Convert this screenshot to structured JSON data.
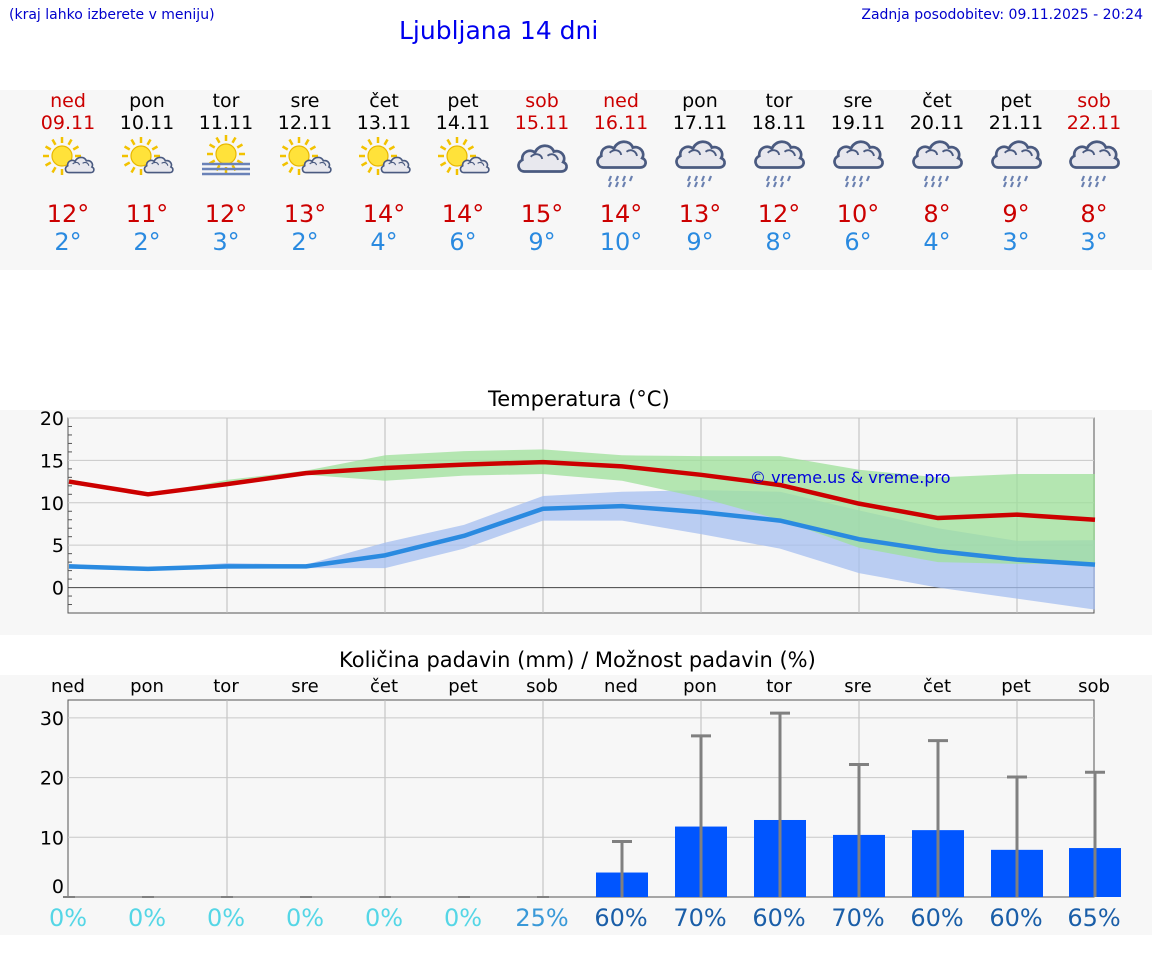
{
  "header": {
    "location_hint": "(kraj lahko izberete v meniju)",
    "title": "Ljubljana 14 dni",
    "last_update": "Zadnja posodobitev: 09.11.2025 - 20:24"
  },
  "days": [
    {
      "name": "ned",
      "date": "09.11",
      "weekend": true,
      "icon": "sun-cloud-icon",
      "tmax": "12°",
      "tmin": "2°"
    },
    {
      "name": "pon",
      "date": "10.11",
      "weekend": false,
      "icon": "sun-cloud-icon",
      "tmax": "11°",
      "tmin": "2°"
    },
    {
      "name": "tor",
      "date": "11.11",
      "weekend": false,
      "icon": "sun-fog-icon",
      "tmax": "12°",
      "tmin": "3°"
    },
    {
      "name": "sre",
      "date": "12.11",
      "weekend": false,
      "icon": "sun-cloud-icon",
      "tmax": "13°",
      "tmin": "2°"
    },
    {
      "name": "čet",
      "date": "13.11",
      "weekend": false,
      "icon": "sun-cloud-icon",
      "tmax": "14°",
      "tmin": "4°"
    },
    {
      "name": "pet",
      "date": "14.11",
      "weekend": false,
      "icon": "sun-cloud-icon",
      "tmax": "14°",
      "tmin": "6°"
    },
    {
      "name": "sob",
      "date": "15.11",
      "weekend": true,
      "icon": "cloud-icon",
      "tmax": "15°",
      "tmin": "9°"
    },
    {
      "name": "ned",
      "date": "16.11",
      "weekend": true,
      "icon": "rain-cloud-icon",
      "tmax": "14°",
      "tmin": "10°"
    },
    {
      "name": "pon",
      "date": "17.11",
      "weekend": false,
      "icon": "rain-cloud-icon",
      "tmax": "13°",
      "tmin": "9°"
    },
    {
      "name": "tor",
      "date": "18.11",
      "weekend": false,
      "icon": "rain-cloud-icon",
      "tmax": "12°",
      "tmin": "8°"
    },
    {
      "name": "sre",
      "date": "19.11",
      "weekend": false,
      "icon": "rain-cloud-icon",
      "tmax": "10°",
      "tmin": "6°"
    },
    {
      "name": "čet",
      "date": "20.11",
      "weekend": false,
      "icon": "rain-cloud-icon",
      "tmax": "8°",
      "tmin": "4°"
    },
    {
      "name": "pet",
      "date": "21.11",
      "weekend": false,
      "icon": "rain-cloud-icon",
      "tmax": "9°",
      "tmin": "3°"
    },
    {
      "name": "sob",
      "date": "22.11",
      "weekend": true,
      "icon": "rain-cloud-icon",
      "tmax": "8°",
      "tmin": "3°"
    }
  ],
  "colors": {
    "weekend": "#cc0000",
    "weekday": "#000000",
    "tmax": "#cc0000",
    "tmin": "#2a8ae0",
    "tmax_band": "#9de09a",
    "tmin_band": "#a6bff0",
    "overlap_band": "#5fb59a",
    "bar": "#0055ff",
    "whisker": "#808080",
    "pct_low": "#55d6e6",
    "pct_mid": "#3a99d8",
    "pct_high": "#1a5ea8"
  },
  "chart_data": [
    {
      "type": "line",
      "title": "Temperatura (°C)",
      "watermark": "© vreme.us & vreme.pro",
      "x": [
        "09.11",
        "10.11",
        "11.11",
        "12.11",
        "13.11",
        "14.11",
        "15.11",
        "16.11",
        "17.11",
        "18.11",
        "19.11",
        "20.11",
        "21.11",
        "22.11"
      ],
      "ylim": [
        -3,
        20
      ],
      "yticks": [
        0,
        5,
        10,
        15,
        20
      ],
      "grid": true,
      "series": [
        {
          "name": "",
          "values": [
            12.5,
            11.0,
            12.2,
            13.5,
            14.1,
            14.5,
            14.8,
            14.3,
            13.3,
            12.1,
            9.9,
            8.2,
            8.6,
            8.0
          ],
          "band_low": [
            12.2,
            11.0,
            12.0,
            13.3,
            12.6,
            13.2,
            13.4,
            12.6,
            10.6,
            8.0,
            4.7,
            3.0,
            2.8,
            2.8
          ],
          "band_high": [
            12.8,
            11.0,
            12.7,
            13.8,
            15.6,
            16.1,
            16.3,
            15.6,
            15.5,
            15.5,
            13.9,
            13.0,
            13.4,
            13.4
          ]
        },
        {
          "name": "",
          "values": [
            2.5,
            2.2,
            2.5,
            2.5,
            3.8,
            6.1,
            9.3,
            9.6,
            8.9,
            7.9,
            5.7,
            4.3,
            3.3,
            2.7
          ],
          "band_low": [
            2.2,
            2.2,
            2.2,
            2.3,
            2.3,
            4.6,
            7.9,
            7.9,
            6.3,
            4.6,
            1.7,
            0.0,
            -1.3,
            -2.6
          ],
          "band_high": [
            2.8,
            2.2,
            2.9,
            2.7,
            5.3,
            7.4,
            10.8,
            11.3,
            11.5,
            11.3,
            9.1,
            7.0,
            5.5,
            5.6
          ]
        }
      ]
    },
    {
      "type": "bar",
      "title": "Količina padavin (mm) / Možnost padavin (%)",
      "categories": [
        "ned",
        "pon",
        "tor",
        "sre",
        "čet",
        "pet",
        "sob",
        "ned",
        "pon",
        "tor",
        "sre",
        "čet",
        "pet",
        "sob"
      ],
      "values": [
        0,
        0,
        0,
        0,
        0,
        0,
        0,
        4.1,
        11.8,
        12.9,
        10.4,
        11.2,
        7.9,
        8.2
      ],
      "error_high": [
        0,
        0,
        0,
        0,
        0,
        0,
        0,
        9.3,
        27.0,
        30.8,
        22.2,
        26.2,
        20.1,
        20.9
      ],
      "probability": [
        "0%",
        "0%",
        "0%",
        "0%",
        "0%",
        "0%",
        "25%",
        "60%",
        "70%",
        "60%",
        "70%",
        "60%",
        "60%",
        "65%"
      ],
      "ylim": [
        0,
        33
      ],
      "yticks": [
        0,
        10,
        20,
        30
      ],
      "grid": true
    }
  ]
}
